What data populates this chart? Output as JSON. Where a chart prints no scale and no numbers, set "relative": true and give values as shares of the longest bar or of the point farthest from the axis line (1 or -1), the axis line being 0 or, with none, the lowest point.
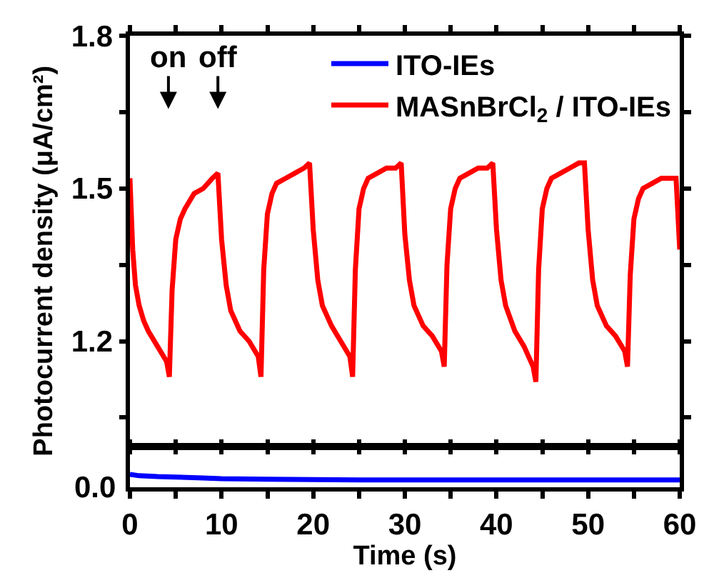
{
  "chart_data": [
    {
      "type": "line",
      "ylabel": "Photocurrent density (μA/cm²)",
      "xlim": [
        0,
        60
      ],
      "ylim": [
        1.0,
        1.8
      ],
      "xticks": [
        0,
        {
          "value": 5,
          "label": null
        },
        10,
        {
          "value": 15,
          "label": null
        },
        20,
        {
          "value": 25,
          "label": null
        },
        30,
        {
          "value": 35,
          "label": null
        },
        40,
        {
          "value": 45,
          "label": null
        },
        50,
        {
          "value": 55,
          "label": null
        },
        60
      ],
      "yticks": [
        {
          "value": 1.05,
          "label": null
        },
        1.2,
        {
          "value": 1.35,
          "label": null
        },
        1.5,
        {
          "value": 1.65,
          "label": null
        },
        1.8
      ],
      "tick_labels": "y",
      "legend": "top right",
      "grid": false,
      "marker": "none",
      "line_style": "solid",
      "annotations": [
        "on",
        "off"
      ],
      "series": [
        {
          "name": "MASnBrCl$_{2}$ / ITO-IEs",
          "color": "#ff0000",
          "x": [
            0,
            0.3,
            0.6,
            1,
            1.5,
            2,
            3,
            4,
            4.3,
            4.6,
            5,
            5.5,
            6,
            7,
            8,
            9,
            9.6,
            10,
            10.5,
            11,
            12,
            13,
            14,
            14.3,
            14.6,
            15,
            15.5,
            16,
            17,
            18,
            19,
            19.6,
            20,
            20.5,
            21,
            22,
            23,
            24,
            24.3,
            24.6,
            25,
            25.5,
            26,
            27,
            28,
            29,
            29.6,
            30,
            30.5,
            31,
            32,
            33,
            34,
            34.3,
            34.6,
            35,
            35.5,
            36,
            37,
            38,
            39,
            39.6,
            40,
            40.5,
            41,
            42,
            43,
            44,
            44.3,
            44.6,
            45,
            45.5,
            46,
            47,
            48,
            49,
            49.6,
            50,
            50.5,
            51,
            52,
            53,
            54,
            54.3,
            54.6,
            55,
            55.5,
            56,
            57,
            58,
            59,
            59.6,
            60
          ],
          "values": [
            1.52,
            1.38,
            1.31,
            1.27,
            1.24,
            1.22,
            1.19,
            1.16,
            1.13,
            1.3,
            1.4,
            1.44,
            1.46,
            1.49,
            1.5,
            1.52,
            1.53,
            1.4,
            1.31,
            1.26,
            1.22,
            1.2,
            1.17,
            1.13,
            1.34,
            1.45,
            1.49,
            1.51,
            1.52,
            1.53,
            1.54,
            1.55,
            1.42,
            1.32,
            1.27,
            1.23,
            1.2,
            1.17,
            1.13,
            1.34,
            1.46,
            1.5,
            1.52,
            1.53,
            1.54,
            1.54,
            1.55,
            1.41,
            1.32,
            1.27,
            1.23,
            1.21,
            1.18,
            1.15,
            1.35,
            1.46,
            1.5,
            1.52,
            1.53,
            1.54,
            1.54,
            1.55,
            1.42,
            1.32,
            1.27,
            1.22,
            1.19,
            1.15,
            1.12,
            1.34,
            1.46,
            1.5,
            1.52,
            1.53,
            1.54,
            1.55,
            1.55,
            1.42,
            1.32,
            1.27,
            1.23,
            1.21,
            1.18,
            1.15,
            1.33,
            1.44,
            1.48,
            1.5,
            1.51,
            1.52,
            1.52,
            1.52,
            1.38
          ]
        }
      ]
    },
    {
      "type": "line",
      "xlabel": "Time (s)",
      "xlim": [
        0,
        60
      ],
      "relative": true,
      "annotations": [
        "0.0"
      ],
      "xticks": [
        0,
        {
          "value": 5,
          "label": null
        },
        10,
        {
          "value": 15,
          "label": null
        },
        20,
        {
          "value": 25,
          "label": null
        },
        30,
        {
          "value": 35,
          "label": null
        },
        40,
        {
          "value": 45,
          "label": null
        },
        50,
        {
          "value": 55,
          "label": null
        },
        60
      ],
      "legend": "top right",
      "grid": false,
      "marker": "none",
      "line_style": "solid",
      "series": [
        {
          "name": "ITO-IEs",
          "color": "#0000ff",
          "x": [
            0,
            1,
            3,
            5,
            8,
            10,
            15,
            20,
            25,
            30,
            35,
            40,
            45,
            50,
            55,
            60
          ],
          "values": [
            1,
            0.9,
            0.83,
            0.8,
            0.73,
            0.67,
            0.63,
            0.6,
            0.57,
            0.57,
            0.57,
            0.57,
            0.57,
            0.57,
            0.57,
            0.57
          ]
        }
      ]
    }
  ]
}
